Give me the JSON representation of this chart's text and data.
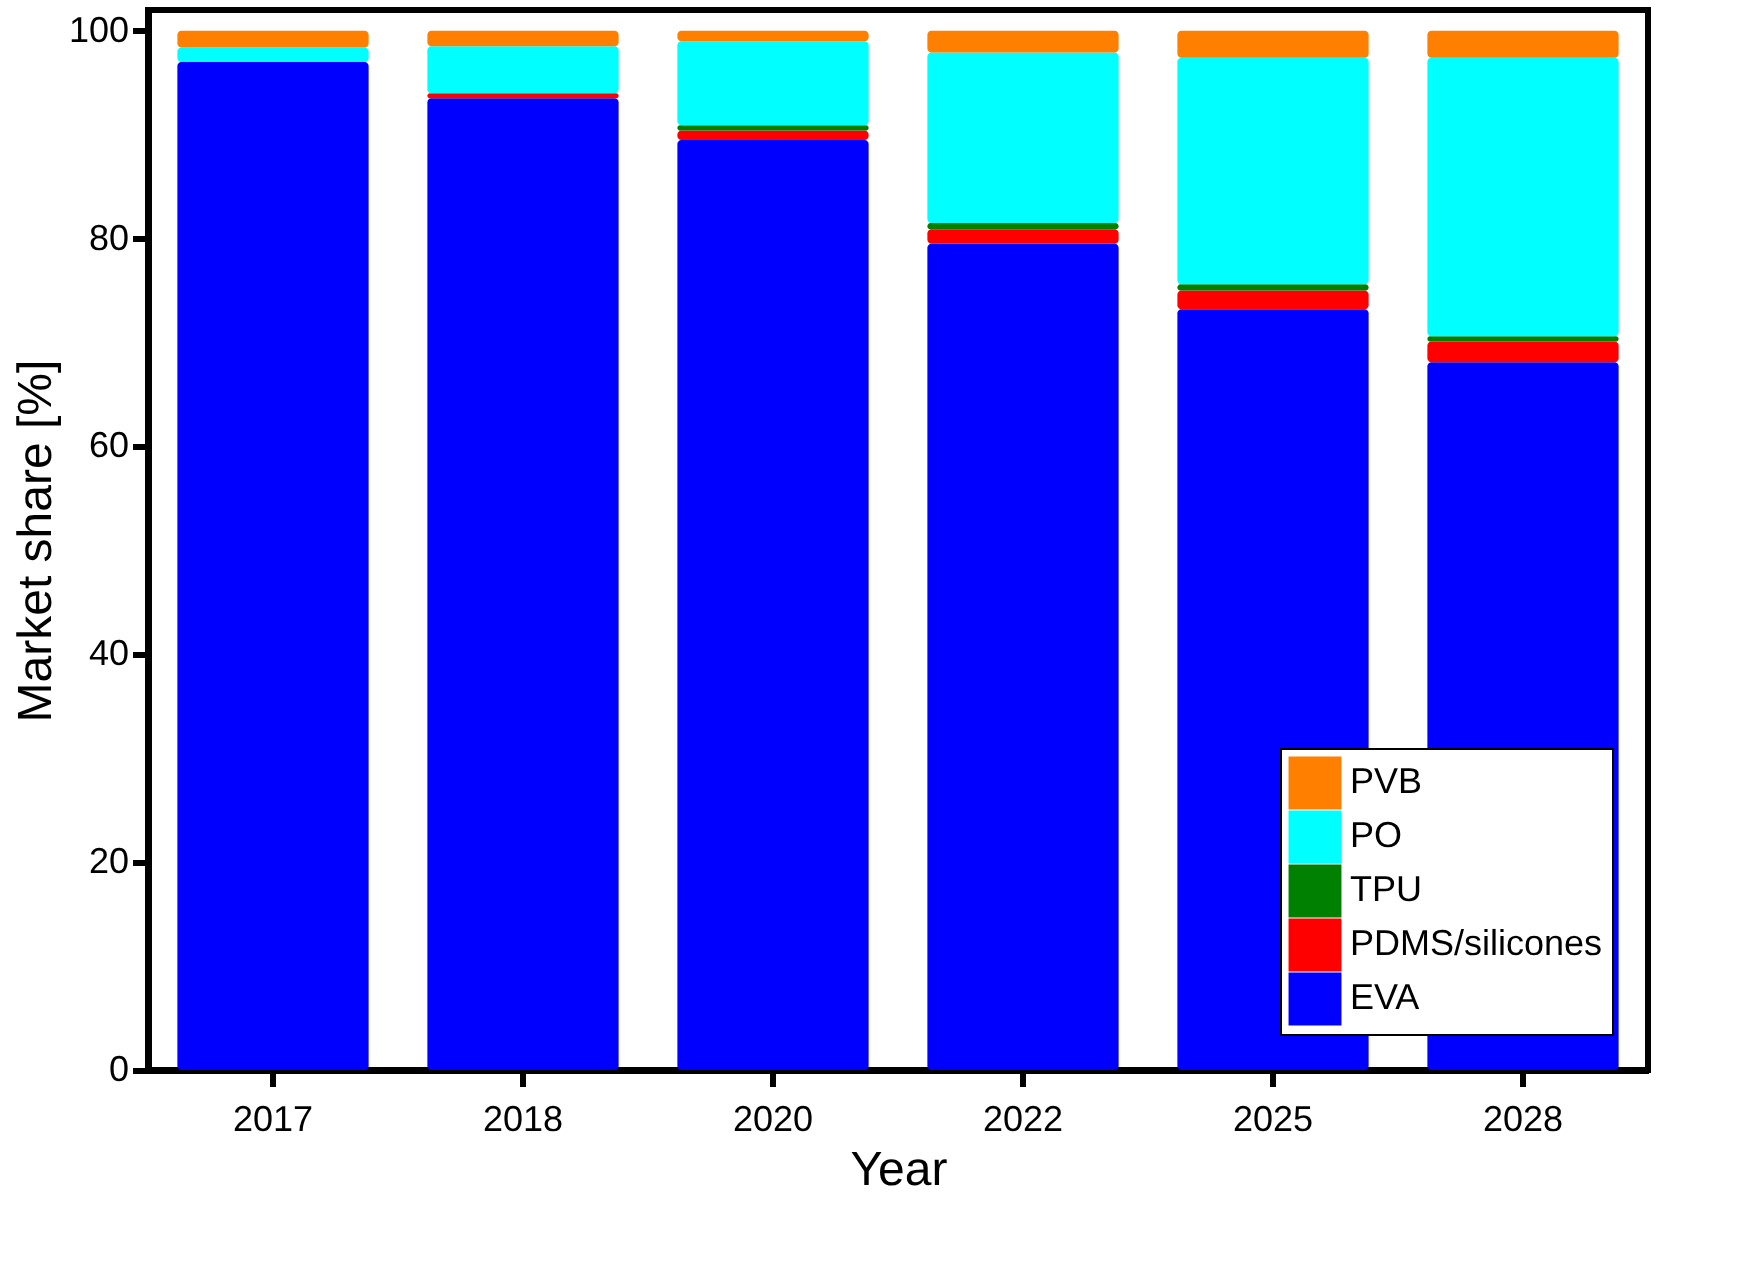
{
  "chart_data": {
    "type": "bar",
    "stacked": true,
    "xlabel": "Year",
    "ylabel": "Market share [%]",
    "categories": [
      "2017",
      "2018",
      "2020",
      "2022",
      "2025",
      "2028"
    ],
    "series": [
      {
        "name": "EVA",
        "color": "#0000ff",
        "values": [
          97.0,
          93.5,
          89.5,
          79.5,
          73.2,
          68.1
        ]
      },
      {
        "name": "PDMS/silicones",
        "color": "#ff0000",
        "values": [
          0,
          0.5,
          0.9,
          1.4,
          1.8,
          2.0
        ]
      },
      {
        "name": "TPU",
        "color": "#008000",
        "values": [
          0,
          0,
          0.5,
          0.6,
          0.6,
          0.5
        ]
      },
      {
        "name": "PO",
        "color": "#00ffff",
        "values": [
          1.4,
          4.5,
          8.1,
          16.4,
          21.8,
          26.8
        ]
      },
      {
        "name": "PVB",
        "color": "#ff8000",
        "values": [
          1.6,
          1.5,
          1.0,
          2.1,
          2.6,
          2.6
        ]
      }
    ],
    "ylim": [
      0,
      102
    ],
    "yticks": [
      0,
      20,
      40,
      60,
      80,
      100
    ],
    "grid": false,
    "legend": "bottom right"
  }
}
